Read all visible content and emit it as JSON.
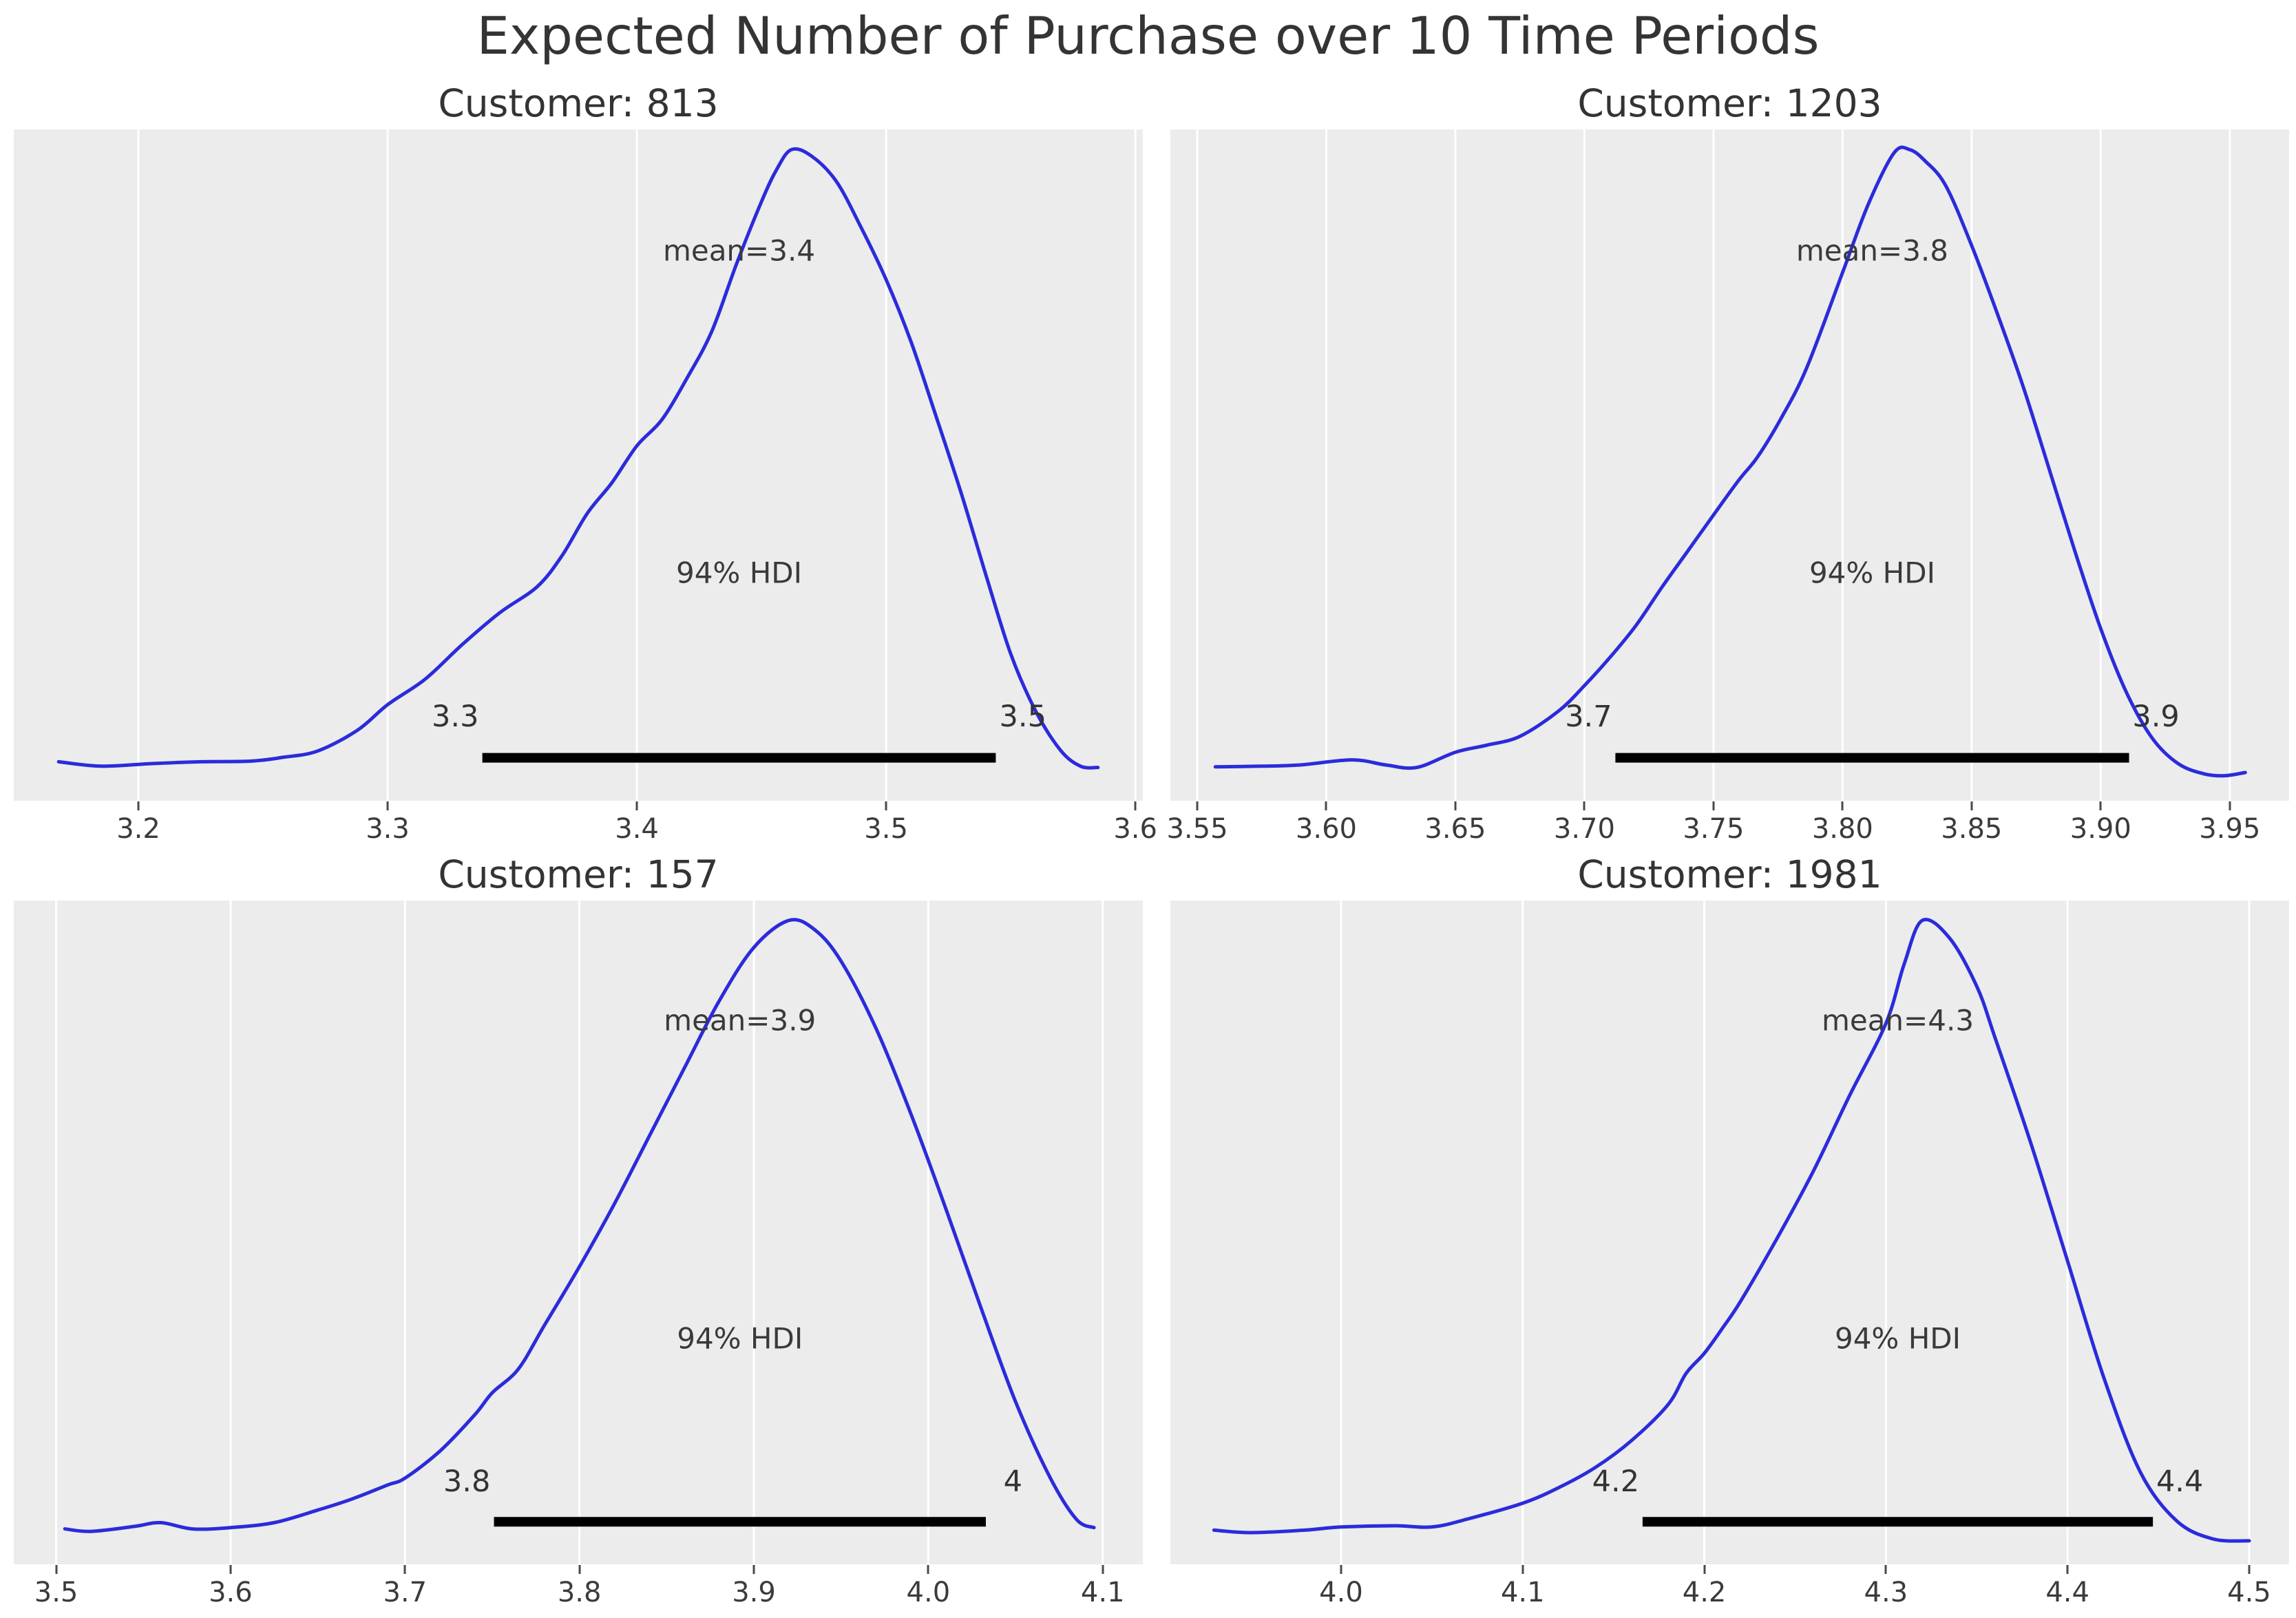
{
  "figure": {
    "title": "Expected Number of Purchase over 10 Time Periods"
  },
  "chart_data": {
    "type": "kde",
    "figure_title": "Expected Number of Purchase over 10 Time Periods",
    "legend": "none",
    "grid": "vertical-white-on-gray",
    "style": {
      "curve_color": "#2b2bdb",
      "panel_bg": "#ececec",
      "grid_color": "#ffffff",
      "hdi_bar_color": "#000000",
      "text_color": "#3a3a3a"
    },
    "charts": [
      {
        "customer_id": "813",
        "title": "Customer: 813",
        "mean": 3.4,
        "mean_label": "mean=3.4",
        "hdi_probability_label": "94% HDI",
        "hdi": [
          3.338,
          3.544
        ],
        "hdi_lower_label": "3.3",
        "hdi_upper_label": "3.5",
        "xlim": [
          3.15,
          3.603
        ],
        "ticks": [
          {
            "value": 3.2,
            "label": "3.2"
          },
          {
            "value": 3.3,
            "label": "3.3"
          },
          {
            "value": 3.4,
            "label": "3.4"
          },
          {
            "value": 3.5,
            "label": "3.5"
          },
          {
            "value": 3.6,
            "label": "3.6"
          }
        ],
        "curve": [
          [
            3.168,
            0.035
          ],
          [
            3.185,
            0.028
          ],
          [
            3.205,
            0.032
          ],
          [
            3.225,
            0.035
          ],
          [
            3.245,
            0.036
          ],
          [
            3.258,
            0.042
          ],
          [
            3.272,
            0.052
          ],
          [
            3.288,
            0.085
          ],
          [
            3.3,
            0.125
          ],
          [
            3.315,
            0.165
          ],
          [
            3.33,
            0.22
          ],
          [
            3.345,
            0.27
          ],
          [
            3.36,
            0.311
          ],
          [
            3.37,
            0.36
          ],
          [
            3.38,
            0.426
          ],
          [
            3.39,
            0.475
          ],
          [
            3.4,
            0.533
          ],
          [
            3.41,
            0.574
          ],
          [
            3.42,
            0.639
          ],
          [
            3.43,
            0.713
          ],
          [
            3.44,
            0.82
          ],
          [
            3.45,
            0.918
          ],
          [
            3.456,
            0.968
          ],
          [
            3.462,
            1.0
          ],
          [
            3.47,
            0.99
          ],
          [
            3.48,
            0.95
          ],
          [
            3.49,
            0.877
          ],
          [
            3.5,
            0.795
          ],
          [
            3.51,
            0.697
          ],
          [
            3.52,
            0.58
          ],
          [
            3.53,
            0.46
          ],
          [
            3.54,
            0.33
          ],
          [
            3.55,
            0.205
          ],
          [
            3.56,
            0.115
          ],
          [
            3.57,
            0.053
          ],
          [
            3.578,
            0.028
          ],
          [
            3.585,
            0.026
          ]
        ]
      },
      {
        "customer_id": "1203",
        "title": "Customer: 1203",
        "mean": 3.8,
        "mean_label": "mean=3.8",
        "hdi_probability_label": "94% HDI",
        "hdi": [
          3.712,
          3.911
        ],
        "hdi_lower_label": "3.7",
        "hdi_upper_label": "3.9",
        "xlim": [
          3.5396,
          3.973
        ],
        "ticks": [
          {
            "value": 3.55,
            "label": "3.55"
          },
          {
            "value": 3.6,
            "label": "3.60"
          },
          {
            "value": 3.65,
            "label": "3.65"
          },
          {
            "value": 3.7,
            "label": "3.70"
          },
          {
            "value": 3.75,
            "label": "3.75"
          },
          {
            "value": 3.8,
            "label": "3.80"
          },
          {
            "value": 3.85,
            "label": "3.85"
          },
          {
            "value": 3.9,
            "label": "3.90"
          },
          {
            "value": 3.95,
            "label": "3.95"
          }
        ],
        "curve": [
          [
            3.557,
            0.027
          ],
          [
            3.575,
            0.028
          ],
          [
            3.59,
            0.03
          ],
          [
            3.61,
            0.038
          ],
          [
            3.623,
            0.03
          ],
          [
            3.635,
            0.026
          ],
          [
            3.65,
            0.05
          ],
          [
            3.662,
            0.061
          ],
          [
            3.675,
            0.075
          ],
          [
            3.69,
            0.115
          ],
          [
            3.7,
            0.155
          ],
          [
            3.71,
            0.2
          ],
          [
            3.72,
            0.25
          ],
          [
            3.73,
            0.31
          ],
          [
            3.74,
            0.367
          ],
          [
            3.75,
            0.424
          ],
          [
            3.76,
            0.48
          ],
          [
            3.767,
            0.515
          ],
          [
            3.776,
            0.575
          ],
          [
            3.786,
            0.655
          ],
          [
            3.8,
            0.806
          ],
          [
            3.81,
            0.914
          ],
          [
            3.82,
            0.995
          ],
          [
            3.826,
            1.0
          ],
          [
            3.832,
            0.982
          ],
          [
            3.84,
            0.943
          ],
          [
            3.85,
            0.849
          ],
          [
            3.86,
            0.741
          ],
          [
            3.87,
            0.626
          ],
          [
            3.88,
            0.497
          ],
          [
            3.89,
            0.367
          ],
          [
            3.9,
            0.245
          ],
          [
            3.91,
            0.144
          ],
          [
            3.92,
            0.072
          ],
          [
            3.93,
            0.032
          ],
          [
            3.94,
            0.016
          ],
          [
            3.948,
            0.013
          ],
          [
            3.956,
            0.018
          ]
        ]
      },
      {
        "customer_id": "157",
        "title": "Customer: 157",
        "mean": 3.9,
        "mean_label": "mean=3.9",
        "hdi_probability_label": "94% HDI",
        "hdi": [
          3.751,
          4.033
        ],
        "hdi_lower_label": "3.8",
        "hdi_upper_label": "4",
        "xlim": [
          3.4757,
          4.123
        ],
        "ticks": [
          {
            "value": 3.5,
            "label": "3.5"
          },
          {
            "value": 3.6,
            "label": "3.6"
          },
          {
            "value": 3.7,
            "label": "3.7"
          },
          {
            "value": 3.8,
            "label": "3.8"
          },
          {
            "value": 3.9,
            "label": "3.9"
          },
          {
            "value": 4.0,
            "label": "4.0"
          },
          {
            "value": 4.1,
            "label": "4.1"
          }
        ],
        "curve": [
          [
            3.505,
            0.03
          ],
          [
            3.52,
            0.026
          ],
          [
            3.545,
            0.034
          ],
          [
            3.56,
            0.04
          ],
          [
            3.578,
            0.03
          ],
          [
            3.6,
            0.032
          ],
          [
            3.625,
            0.04
          ],
          [
            3.65,
            0.06
          ],
          [
            3.67,
            0.078
          ],
          [
            3.69,
            0.1
          ],
          [
            3.7,
            0.111
          ],
          [
            3.72,
            0.154
          ],
          [
            3.74,
            0.212
          ],
          [
            3.75,
            0.247
          ],
          [
            3.765,
            0.285
          ],
          [
            3.78,
            0.355
          ],
          [
            3.8,
            0.448
          ],
          [
            3.82,
            0.548
          ],
          [
            3.84,
            0.656
          ],
          [
            3.86,
            0.764
          ],
          [
            3.88,
            0.871
          ],
          [
            3.9,
            0.957
          ],
          [
            3.92,
            1.0
          ],
          [
            3.935,
            0.985
          ],
          [
            3.95,
            0.935
          ],
          [
            3.97,
            0.828
          ],
          [
            3.99,
            0.692
          ],
          [
            4.01,
            0.541
          ],
          [
            4.03,
            0.384
          ],
          [
            4.05,
            0.233
          ],
          [
            4.07,
            0.111
          ],
          [
            4.085,
            0.045
          ],
          [
            4.095,
            0.032
          ]
        ]
      },
      {
        "customer_id": "1981",
        "title": "Customer: 1981",
        "mean": 4.3,
        "mean_label": "mean=4.3",
        "hdi_probability_label": "94% HDI",
        "hdi": [
          4.166,
          4.447
        ],
        "hdi_lower_label": "4.2",
        "hdi_upper_label": "4.4",
        "xlim": [
          3.906,
          4.522
        ],
        "ticks": [
          {
            "value": 4.0,
            "label": "4.0"
          },
          {
            "value": 4.1,
            "label": "4.1"
          },
          {
            "value": 4.2,
            "label": "4.2"
          },
          {
            "value": 4.3,
            "label": "4.3"
          },
          {
            "value": 4.4,
            "label": "4.4"
          },
          {
            "value": 4.5,
            "label": "4.5"
          }
        ],
        "curve": [
          [
            3.93,
            0.028
          ],
          [
            3.95,
            0.024
          ],
          [
            3.98,
            0.028
          ],
          [
            4.0,
            0.033
          ],
          [
            4.03,
            0.035
          ],
          [
            4.05,
            0.033
          ],
          [
            4.07,
            0.046
          ],
          [
            4.1,
            0.071
          ],
          [
            4.12,
            0.096
          ],
          [
            4.14,
            0.128
          ],
          [
            4.16,
            0.171
          ],
          [
            4.18,
            0.228
          ],
          [
            4.19,
            0.278
          ],
          [
            4.2,
            0.31
          ],
          [
            4.21,
            0.35
          ],
          [
            4.22,
            0.393
          ],
          [
            4.24,
            0.493
          ],
          [
            4.26,
            0.6
          ],
          [
            4.28,
            0.721
          ],
          [
            4.3,
            0.836
          ],
          [
            4.31,
            0.93
          ],
          [
            4.32,
            1.0
          ],
          [
            4.335,
            0.972
          ],
          [
            4.35,
            0.895
          ],
          [
            4.36,
            0.814
          ],
          [
            4.38,
            0.643
          ],
          [
            4.4,
            0.457
          ],
          [
            4.42,
            0.271
          ],
          [
            4.44,
            0.121
          ],
          [
            4.46,
            0.043
          ],
          [
            4.48,
            0.014
          ],
          [
            4.5,
            0.011
          ]
        ]
      }
    ]
  }
}
